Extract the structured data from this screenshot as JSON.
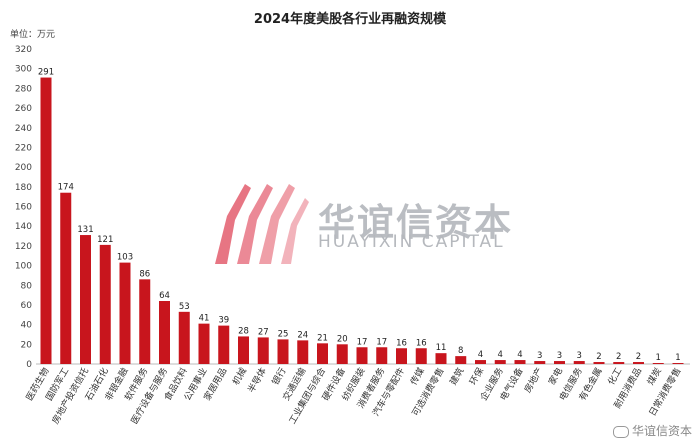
{
  "watermark": {
    "main": "华谊信资本",
    "sub": "HUAYIXIN CAPITAL",
    "corner": "华谊信资本"
  },
  "chart_data": {
    "type": "bar",
    "title": "2024年度美股各行业再融资规模",
    "unit_label": "单位：万元",
    "ylim": [
      0,
      320
    ],
    "yticks": [
      0,
      20,
      40,
      60,
      80,
      100,
      120,
      140,
      160,
      180,
      200,
      220,
      240,
      260,
      280,
      300,
      320
    ],
    "grid": false,
    "bar_color": "#c8151d",
    "categories": [
      "医药生物",
      "国防军工",
      "房地产投资信托",
      "石油石化",
      "非银金融",
      "软件服务",
      "医疗设备与服务",
      "食品饮料",
      "公用事业",
      "家居用品",
      "机械",
      "半导体",
      "银行",
      "交通运输",
      "工业集团与综合",
      "硬件设备",
      "纺织服装",
      "消费者服务",
      "汽车与零配件",
      "传媒",
      "可选消费零售",
      "建筑",
      "环保",
      "企业服务",
      "电气设备",
      "房地产",
      "家电",
      "电信服务",
      "有色金属",
      "化工",
      "耐用消费品",
      "煤炭",
      "日常消费零售"
    ],
    "values": [
      291,
      174,
      131,
      121,
      103,
      86,
      64,
      53,
      41,
      39,
      28,
      27,
      25,
      24,
      21,
      20,
      17,
      17,
      16,
      16,
      11,
      8,
      4,
      4,
      4,
      3,
      3,
      3,
      2,
      2,
      2,
      1,
      1
    ]
  }
}
